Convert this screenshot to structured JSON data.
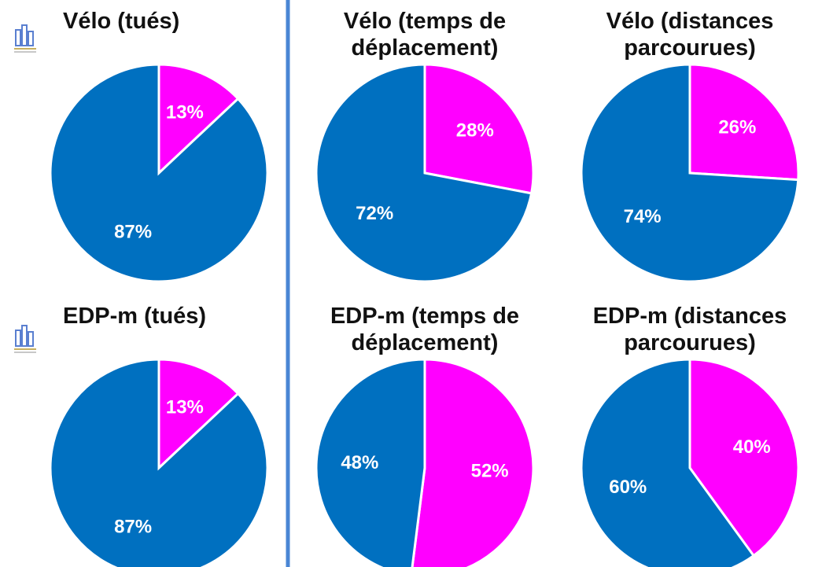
{
  "chart_data": [
    {
      "type": "pie",
      "title": "Vélo (tués)",
      "values": [
        13,
        87
      ],
      "value_labels": [
        "13%",
        "87%"
      ],
      "colors": [
        "#ff00ff",
        "#0070c0"
      ]
    },
    {
      "type": "pie",
      "title": "Vélo (temps de déplacement)",
      "values": [
        28,
        72
      ],
      "value_labels": [
        "28%",
        "72%"
      ],
      "colors": [
        "#ff00ff",
        "#0070c0"
      ]
    },
    {
      "type": "pie",
      "title": "Vélo (distances parcourues)",
      "values": [
        26,
        74
      ],
      "value_labels": [
        "26%",
        "74%"
      ],
      "colors": [
        "#ff00ff",
        "#0070c0"
      ]
    },
    {
      "type": "pie",
      "title": "EDP-m (tués)",
      "values": [
        13,
        87
      ],
      "value_labels": [
        "13%",
        "87%"
      ],
      "colors": [
        "#ff00ff",
        "#0070c0"
      ]
    },
    {
      "type": "pie",
      "title": "EDP-m (temps de déplacement)",
      "values": [
        52,
        48
      ],
      "value_labels": [
        "52%",
        "48%"
      ],
      "colors": [
        "#ff00ff",
        "#0070c0"
      ]
    },
    {
      "type": "pie",
      "title": "EDP-m (distances parcourues)",
      "values": [
        40,
        60
      ],
      "value_labels": [
        "40%",
        "60%"
      ],
      "colors": [
        "#ff00ff",
        "#0070c0"
      ]
    }
  ]
}
